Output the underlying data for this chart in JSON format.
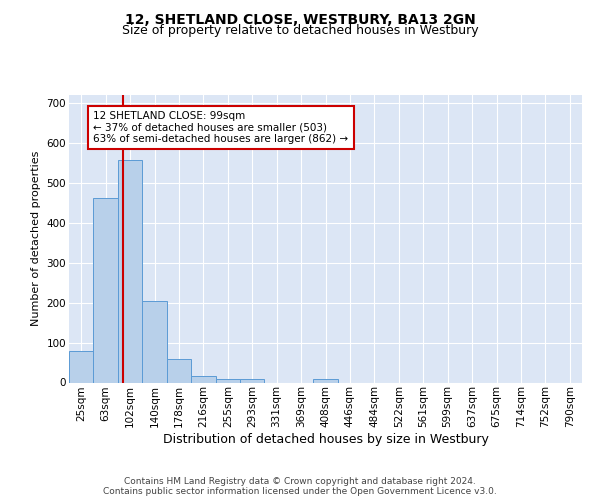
{
  "title1": "12, SHETLAND CLOSE, WESTBURY, BA13 2GN",
  "title2": "Size of property relative to detached houses in Westbury",
  "xlabel": "Distribution of detached houses by size in Westbury",
  "ylabel": "Number of detached properties",
  "bar_labels": [
    "25sqm",
    "63sqm",
    "102sqm",
    "140sqm",
    "178sqm",
    "216sqm",
    "255sqm",
    "293sqm",
    "331sqm",
    "369sqm",
    "408sqm",
    "446sqm",
    "484sqm",
    "522sqm",
    "561sqm",
    "599sqm",
    "637sqm",
    "675sqm",
    "714sqm",
    "752sqm",
    "790sqm"
  ],
  "bar_values": [
    80,
    463,
    557,
    204,
    60,
    17,
    9,
    8,
    0,
    0,
    8,
    0,
    0,
    0,
    0,
    0,
    0,
    0,
    0,
    0,
    0
  ],
  "bar_color": "#b8d0ea",
  "bar_edge_color": "#5b9bd5",
  "bg_color": "#dce6f5",
  "grid_color": "#ffffff",
  "vline_color": "#cc0000",
  "vline_pos": 1.72,
  "annotation_text": "12 SHETLAND CLOSE: 99sqm\n← 37% of detached houses are smaller (503)\n63% of semi-detached houses are larger (862) →",
  "annotation_box_color": "#ffffff",
  "annotation_box_edge": "#cc0000",
  "ylim": [
    0,
    720
  ],
  "yticks": [
    0,
    100,
    200,
    300,
    400,
    500,
    600,
    700
  ],
  "footer": "Contains HM Land Registry data © Crown copyright and database right 2024.\nContains public sector information licensed under the Open Government Licence v3.0.",
  "title1_fontsize": 10,
  "title2_fontsize": 9,
  "xlabel_fontsize": 9,
  "ylabel_fontsize": 8,
  "tick_fontsize": 7.5,
  "annotation_fontsize": 7.5,
  "footer_fontsize": 6.5
}
